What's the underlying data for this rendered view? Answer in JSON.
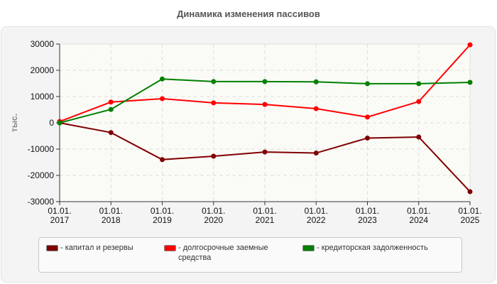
{
  "chart_data": {
    "type": "line",
    "title": "Динамика изменения пассивов",
    "xlabel": "",
    "ylabel": "тыс.",
    "categories": [
      "01.01.\n2017",
      "01.01.\n2018",
      "01.01.\n2019",
      "01.01.\n2020",
      "01.01.\n2021",
      "01.01.\n2022",
      "01.01.\n2023",
      "01.01.\n2024",
      "01.01.\n2025"
    ],
    "ylim": [
      -30000,
      30000
    ],
    "yticks": [
      30000,
      20000,
      10000,
      0,
      -10000,
      -20000,
      -30000
    ],
    "grid": true,
    "legend_position": "bottom",
    "series": [
      {
        "name": "капитал и резервы",
        "color": "#800000",
        "values": [
          0,
          -3700,
          -14000,
          -12700,
          -11100,
          -11500,
          -5800,
          -5400,
          -26200
        ]
      },
      {
        "name": "долгосрочные заемные средства",
        "color": "#ff0000",
        "values": [
          500,
          7900,
          9200,
          7600,
          7000,
          5400,
          2200,
          8100,
          29700
        ]
      },
      {
        "name": "кредиторская задолженность",
        "color": "#008000",
        "values": [
          0,
          5100,
          16700,
          15700,
          15700,
          15600,
          14900,
          14900,
          15400
        ]
      }
    ]
  },
  "legend": {
    "items": [
      {
        "label": "- капитал и резервы",
        "color": "#800000"
      },
      {
        "label": "- долгосрочные заемные средства",
        "color": "#ff0000"
      },
      {
        "label": "- кредиторская задолженность",
        "color": "#008000"
      }
    ]
  }
}
